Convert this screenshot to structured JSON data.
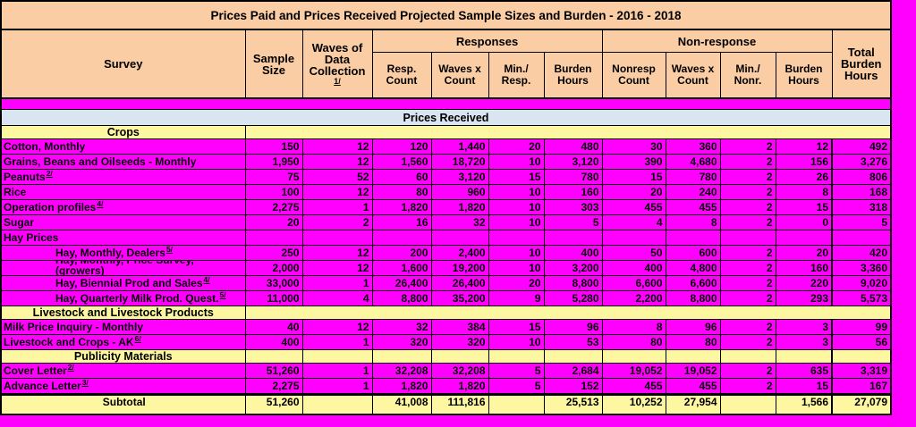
{
  "colors": {
    "peach": "#FACDA5",
    "magenta": "#FF00FF",
    "blue": "#D9E5F1",
    "yellow": "#FDF7A2",
    "border": "#000000"
  },
  "title": "Prices Paid and Prices Received Projected Sample Sizes and Burden - 2016 - 2018",
  "header": {
    "survey": "Survey",
    "sample_size": "Sample Size",
    "waves": "Waves of Data Collection",
    "waves_footnote": "1/",
    "responses_group": "Responses",
    "nonresponse_group": "Non-response",
    "resp_count": "Resp. Count",
    "resp_waves_x_count": "Waves x Count",
    "min_resp": "Min./ Resp.",
    "resp_burden_hours": "Burden Hours",
    "nonresp_count": "Nonresp Count",
    "nonresp_waves_x_count": "Waves x Count",
    "min_nonr": "Min./ Nonr.",
    "nonresp_burden_hours": "Burden Hours",
    "total_burden_hours": "Total Burden Hours"
  },
  "table": {
    "rows": [
      {
        "type": "spacer"
      },
      {
        "type": "band",
        "label": "Prices Received"
      },
      {
        "type": "section",
        "label": "Crops",
        "merged": true
      },
      {
        "type": "data",
        "survey": "Cotton, Monthly",
        "values": [
          "150",
          "12",
          "120",
          "1,440",
          "20",
          "480",
          "30",
          "360",
          "2",
          "12",
          "492"
        ]
      },
      {
        "type": "data",
        "survey": "Grains, Beans and Oilseeds - Monthly",
        "values": [
          "1,950",
          "12",
          "1,560",
          "18,720",
          "10",
          "3,120",
          "390",
          "4,680",
          "2",
          "156",
          "3,276"
        ]
      },
      {
        "type": "data",
        "survey": "Peanuts",
        "sup": "2/",
        "values": [
          "75",
          "52",
          "60",
          "3,120",
          "15",
          "780",
          "15",
          "780",
          "2",
          "26",
          "806"
        ]
      },
      {
        "type": "data",
        "survey": "Rice",
        "values": [
          "100",
          "12",
          "80",
          "960",
          "10",
          "160",
          "20",
          "240",
          "2",
          "8",
          "168"
        ]
      },
      {
        "type": "data",
        "survey": "Operation profiles",
        "sup": "4/",
        "values": [
          "2,275",
          "1",
          "1,820",
          "1,820",
          "10",
          "303",
          "455",
          "455",
          "2",
          "15",
          "318"
        ]
      },
      {
        "type": "data",
        "survey": "Sugar",
        "values": [
          "20",
          "2",
          "16",
          "32",
          "10",
          "5",
          "4",
          "8",
          "2",
          "0",
          "5"
        ]
      },
      {
        "type": "data",
        "survey": "Hay Prices",
        "values": [
          "",
          "",
          "",
          "",
          "",
          "",
          "",
          "",
          "",
          "",
          ""
        ]
      },
      {
        "type": "data",
        "survey": "Hay, Monthly, Dealers",
        "sup": "5/",
        "indent": true,
        "values": [
          "250",
          "12",
          "200",
          "2,400",
          "10",
          "400",
          "50",
          "600",
          "2",
          "20",
          "420"
        ]
      },
      {
        "type": "data",
        "survey": "(growers)",
        "clipped_line": "Hay, Monthly, Price Survey,",
        "indent": true,
        "values": [
          "2,000",
          "12",
          "1,600",
          "19,200",
          "10",
          "3,200",
          "400",
          "4,800",
          "2",
          "160",
          "3,360"
        ]
      },
      {
        "type": "data",
        "survey": "Hay, Biennial Prod and Sales",
        "sup": "4/",
        "indent": true,
        "values": [
          "33,000",
          "1",
          "26,400",
          "26,400",
          "20",
          "8,800",
          "6,600",
          "6,600",
          "2",
          "220",
          "9,020"
        ]
      },
      {
        "type": "data",
        "survey": "Hay, Quarterly Milk Prod. Quest.",
        "sup": "5/",
        "indent": true,
        "values": [
          "11,000",
          "4",
          "8,800",
          "35,200",
          "9",
          "5,280",
          "2,200",
          "8,800",
          "2",
          "293",
          "5,573"
        ]
      },
      {
        "type": "section",
        "label": "Livestock and Livestock Products",
        "merged": true
      },
      {
        "type": "data",
        "survey": "Milk Price Inquiry - Monthly",
        "values": [
          "40",
          "12",
          "32",
          "384",
          "15",
          "96",
          "8",
          "96",
          "2",
          "3",
          "99"
        ]
      },
      {
        "type": "data",
        "survey": "Livestock and Crops - AK",
        "sup": "6/",
        "values": [
          "400",
          "1",
          "320",
          "320",
          "10",
          "53",
          "80",
          "80",
          "2",
          "3",
          "56"
        ]
      },
      {
        "type": "section",
        "label": "Publicity Materials",
        "merged": false
      },
      {
        "type": "data",
        "survey": "Cover Letter",
        "sup": "2/",
        "values": [
          "51,260",
          "1",
          "32,208",
          "32,208",
          "5",
          "2,684",
          "19,052",
          "19,052",
          "2",
          "635",
          "3,319"
        ]
      },
      {
        "type": "data",
        "survey": "Advance Letter",
        "sup": "3/",
        "values": [
          "2,275",
          "1",
          "1,820",
          "1,820",
          "5",
          "152",
          "455",
          "455",
          "2",
          "15",
          "167"
        ]
      },
      {
        "type": "subtotal",
        "survey": "Subtotal",
        "values": [
          "51,260",
          "",
          "41,008",
          "111,816",
          "",
          "25,513",
          "10,252",
          "27,954",
          "",
          "1,566",
          "27,079"
        ]
      }
    ]
  }
}
